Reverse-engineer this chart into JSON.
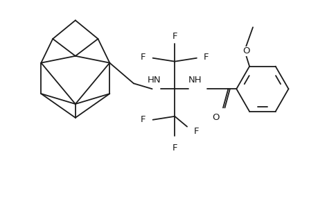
{
  "bg": "#ffffff",
  "lc": "#1a1a1a",
  "lw": 1.3,
  "fs": 9.5,
  "xlim": [
    -0.05,
    4.6
  ],
  "ylim": [
    0.0,
    3.0
  ],
  "figw": 4.6,
  "figh": 3.0,
  "dpi": 100
}
